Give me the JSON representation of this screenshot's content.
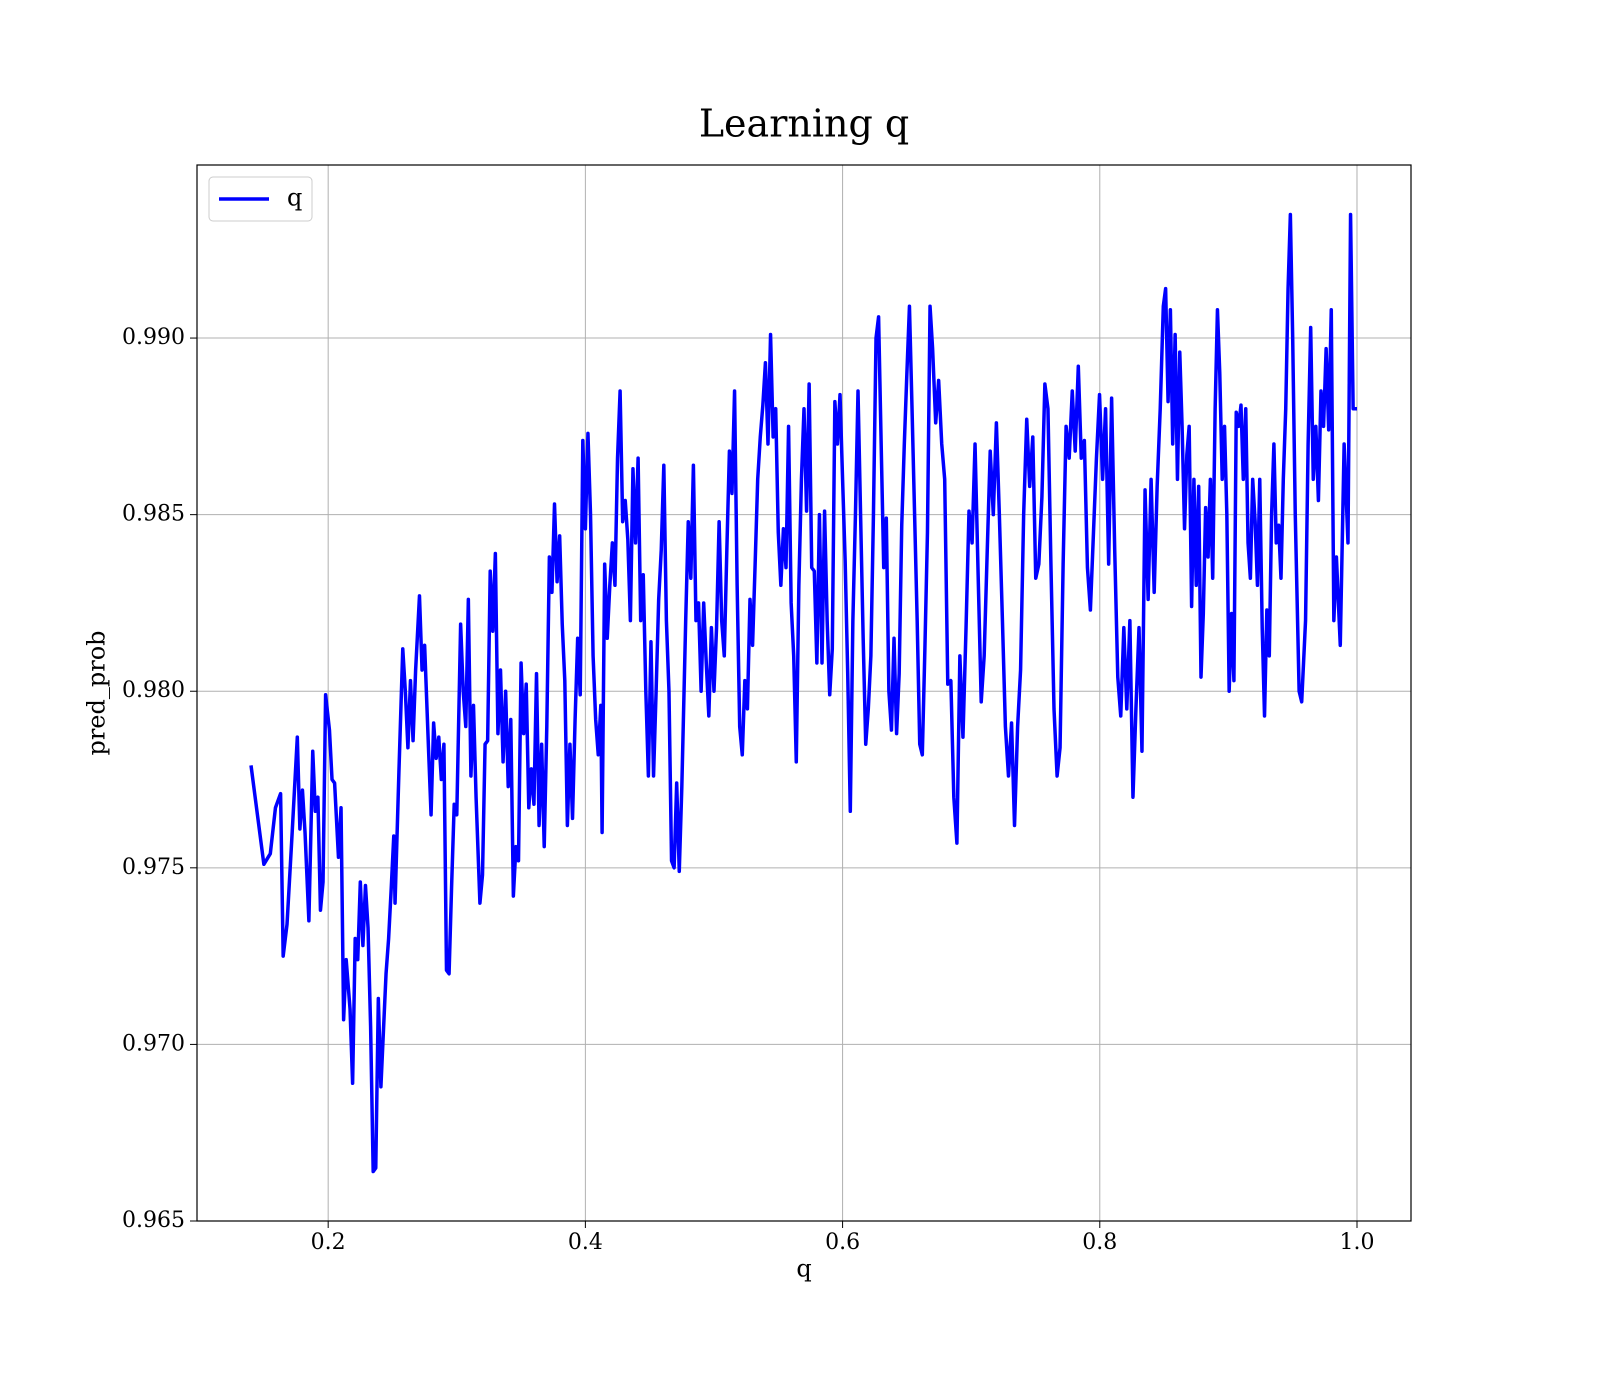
{
  "chart_data": {
    "type": "line",
    "title": "Learning q",
    "xlabel": "q",
    "ylabel": "pred_prob",
    "x": [
      0.14,
      0.15,
      0.155,
      0.159,
      0.163,
      0.165,
      0.168,
      0.172,
      0.176,
      0.178,
      0.18,
      0.182,
      0.185,
      0.188,
      0.19,
      0.192,
      0.194,
      0.196,
      0.198,
      0.201,
      0.203,
      0.205,
      0.208,
      0.21,
      0.212,
      0.214,
      0.217,
      0.219,
      0.221,
      0.223,
      0.225,
      0.227,
      0.229,
      0.231,
      0.233,
      0.235,
      0.237,
      0.239,
      0.241,
      0.243,
      0.245,
      0.247,
      0.249,
      0.251,
      0.252,
      0.255,
      0.258,
      0.26,
      0.262,
      0.264,
      0.266,
      0.268,
      0.271,
      0.273,
      0.275,
      0.278,
      0.28,
      0.282,
      0.284,
      0.286,
      0.288,
      0.29,
      0.292,
      0.294,
      0.296,
      0.298,
      0.3,
      0.303,
      0.305,
      0.307,
      0.309,
      0.311,
      0.313,
      0.315,
      0.318,
      0.32,
      0.322,
      0.324,
      0.326,
      0.328,
      0.33,
      0.332,
      0.334,
      0.336,
      0.338,
      0.34,
      0.342,
      0.344,
      0.346,
      0.348,
      0.35,
      0.352,
      0.354,
      0.356,
      0.358,
      0.36,
      0.362,
      0.364,
      0.366,
      0.368,
      0.37,
      0.372,
      0.374,
      0.376,
      0.378,
      0.38,
      0.382,
      0.384,
      0.386,
      0.388,
      0.39,
      0.392,
      0.394,
      0.396,
      0.398,
      0.4,
      0.402,
      0.404,
      0.406,
      0.408,
      0.41,
      0.412,
      0.413,
      0.415,
      0.417,
      0.419,
      0.421,
      0.423,
      0.425,
      0.427,
      0.429,
      0.431,
      0.433,
      0.435,
      0.437,
      0.439,
      0.441,
      0.443,
      0.445,
      0.447,
      0.449,
      0.451,
      0.453,
      0.455,
      0.457,
      0.459,
      0.461,
      0.463,
      0.465,
      0.467,
      0.469,
      0.471,
      0.473,
      0.475,
      0.478,
      0.48,
      0.482,
      0.484,
      0.486,
      0.488,
      0.49,
      0.492,
      0.494,
      0.496,
      0.498,
      0.5,
      0.502,
      0.504,
      0.506,
      0.508,
      0.51,
      0.512,
      0.514,
      0.516,
      0.518,
      0.52,
      0.522,
      0.524,
      0.526,
      0.528,
      0.53,
      0.532,
      0.534,
      0.536,
      0.538,
      0.54,
      0.542,
      0.544,
      0.546,
      0.548,
      0.55,
      0.552,
      0.554,
      0.556,
      0.558,
      0.56,
      0.562,
      0.564,
      0.566,
      0.568,
      0.57,
      0.572,
      0.574,
      0.576,
      0.578,
      0.58,
      0.582,
      0.584,
      0.586,
      0.588,
      0.59,
      0.592,
      0.594,
      0.596,
      0.598,
      0.6,
      0.602,
      0.604,
      0.606,
      0.608,
      0.61,
      0.612,
      0.614,
      0.616,
      0.618,
      0.62,
      0.622,
      0.624,
      0.626,
      0.628,
      0.63,
      0.632,
      0.634,
      0.636,
      0.638,
      0.64,
      0.642,
      0.644,
      0.646,
      0.648,
      0.65,
      0.652,
      0.654,
      0.656,
      0.658,
      0.66,
      0.662,
      0.664,
      0.666,
      0.668,
      0.67,
      0.6724,
      0.6747,
      0.6771,
      0.6794,
      0.6818,
      0.6842,
      0.6865,
      0.6889,
      0.6912,
      0.6936,
      0.696,
      0.6983,
      0.7007,
      0.703,
      0.7054,
      0.7078,
      0.7101,
      0.7125,
      0.7148,
      0.7172,
      0.7196,
      0.7219,
      0.7243,
      0.7266,
      0.729,
      0.7314,
      0.7337,
      0.7361,
      0.7384,
      0.7408,
      0.7432,
      0.7455,
      0.7479,
      0.7502,
      0.7526,
      0.755,
      0.7573,
      0.7597,
      0.762,
      0.7644,
      0.7668,
      0.7691,
      0.7715,
      0.7738,
      0.7762,
      0.7786,
      0.7809,
      0.7833,
      0.7856,
      0.788,
      0.7904,
      0.7927,
      0.7951,
      0.7974,
      0.7998,
      0.8022,
      0.8045,
      0.8069,
      0.8092,
      0.8116,
      0.814,
      0.8163,
      0.8187,
      0.821,
      0.8234,
      0.8258,
      0.8281,
      0.8305,
      0.8328,
      0.8352,
      0.8376,
      0.8399,
      0.8423,
      0.8446,
      0.847,
      0.8494,
      0.8512,
      0.8531,
      0.8549,
      0.8567,
      0.8586,
      0.8604,
      0.8622,
      0.864,
      0.8659,
      0.8677,
      0.8695,
      0.8714,
      0.8732,
      0.875,
      0.8769,
      0.8787,
      0.8805,
      0.8823,
      0.8842,
      0.886,
      0.8878,
      0.8897,
      0.8915,
      0.8933,
      0.8952,
      0.897,
      0.8988,
      0.9006,
      0.9025,
      0.9043,
      0.9061,
      0.908,
      0.9098,
      0.9116,
      0.9135,
      0.9153,
      0.9171,
      0.9189,
      0.9208,
      0.9226,
      0.9244,
      0.9263,
      0.9281,
      0.9299,
      0.9318,
      0.9336,
      0.9354,
      0.9372,
      0.9391,
      0.9409,
      0.9427,
      0.9446,
      0.9464,
      0.9482,
      0.95,
      0.952,
      0.955,
      0.957,
      0.96,
      0.962,
      0.964,
      0.966,
      0.968,
      0.97,
      0.972,
      0.974,
      0.976,
      0.978,
      0.98,
      0.982,
      0.984,
      0.987,
      0.99,
      0.993,
      0.995,
      0.997,
      1.0
    ],
    "series": [
      {
        "name": "q",
        "color": "#0000ff",
        "values": [
          0.9779,
          0.9751,
          0.9754,
          0.9767,
          0.9771,
          0.9725,
          0.9734,
          0.976,
          0.9787,
          0.9761,
          0.9772,
          0.976,
          0.9735,
          0.9783,
          0.9766,
          0.977,
          0.9738,
          0.9746,
          0.9799,
          0.9789,
          0.9775,
          0.9774,
          0.9753,
          0.9767,
          0.9707,
          0.9724,
          0.971,
          0.9689,
          0.973,
          0.9724,
          0.9746,
          0.9728,
          0.9745,
          0.9733,
          0.9705,
          0.9664,
          0.9665,
          0.9713,
          0.9688,
          0.9704,
          0.972,
          0.973,
          0.9744,
          0.9759,
          0.974,
          0.9777,
          0.9812,
          0.98,
          0.9784,
          0.9803,
          0.9786,
          0.9806,
          0.9827,
          0.9806,
          0.9813,
          0.9784,
          0.9765,
          0.9791,
          0.9781,
          0.9787,
          0.9775,
          0.9785,
          0.9721,
          0.972,
          0.9745,
          0.9768,
          0.9765,
          0.9819,
          0.98,
          0.979,
          0.9826,
          0.9776,
          0.9796,
          0.977,
          0.974,
          0.9748,
          0.9785,
          0.9786,
          0.9834,
          0.9817,
          0.9839,
          0.9788,
          0.9806,
          0.978,
          0.98,
          0.9773,
          0.9792,
          0.9742,
          0.9756,
          0.9752,
          0.9808,
          0.9788,
          0.9802,
          0.9767,
          0.9778,
          0.9768,
          0.9805,
          0.9762,
          0.9785,
          0.9756,
          0.979,
          0.9838,
          0.9828,
          0.9853,
          0.9831,
          0.9844,
          0.9819,
          0.9803,
          0.9762,
          0.9785,
          0.9764,
          0.9792,
          0.9815,
          0.9799,
          0.9871,
          0.9846,
          0.9873,
          0.985,
          0.981,
          0.9792,
          0.9782,
          0.9796,
          0.976,
          0.9836,
          0.9815,
          0.983,
          0.9842,
          0.983,
          0.9866,
          0.9885,
          0.9848,
          0.9854,
          0.9843,
          0.982,
          0.9863,
          0.9842,
          0.9866,
          0.982,
          0.9833,
          0.98,
          0.9776,
          0.9814,
          0.9776,
          0.98,
          0.9826,
          0.984,
          0.9864,
          0.982,
          0.98,
          0.9752,
          0.975,
          0.9774,
          0.9749,
          0.9773,
          0.982,
          0.9848,
          0.9832,
          0.9864,
          0.982,
          0.9825,
          0.98,
          0.9825,
          0.9808,
          0.9793,
          0.9818,
          0.98,
          0.9818,
          0.9848,
          0.982,
          0.981,
          0.984,
          0.9868,
          0.9856,
          0.9885,
          0.983,
          0.979,
          0.9782,
          0.9803,
          0.9795,
          0.9826,
          0.9813,
          0.9836,
          0.986,
          0.9872,
          0.9881,
          0.9893,
          0.987,
          0.9901,
          0.9872,
          0.988,
          0.9845,
          0.983,
          0.9846,
          0.9835,
          0.9875,
          0.9825,
          0.981,
          0.978,
          0.983,
          0.986,
          0.988,
          0.9851,
          0.9887,
          0.9835,
          0.9834,
          0.9808,
          0.985,
          0.9808,
          0.9851,
          0.982,
          0.9799,
          0.9812,
          0.9882,
          0.987,
          0.9884,
          0.986,
          0.9837,
          0.9805,
          0.9766,
          0.982,
          0.985,
          0.9885,
          0.985,
          0.9815,
          0.9785,
          0.9795,
          0.981,
          0.985,
          0.99,
          0.9906,
          0.987,
          0.9835,
          0.9849,
          0.98,
          0.9789,
          0.9815,
          0.9788,
          0.9805,
          0.9847,
          0.987,
          0.989,
          0.9909,
          0.988,
          0.985,
          0.982,
          0.9785,
          0.9782,
          0.9812,
          0.9845,
          0.9909,
          0.9897,
          0.9876,
          0.9888,
          0.987,
          0.986,
          0.9802,
          0.9803,
          0.977,
          0.9757,
          0.981,
          0.9787,
          0.9818,
          0.9851,
          0.9842,
          0.987,
          0.9833,
          0.9797,
          0.981,
          0.984,
          0.9868,
          0.985,
          0.9876,
          0.985,
          0.982,
          0.979,
          0.9776,
          0.9791,
          0.9762,
          0.979,
          0.9806,
          0.985,
          0.9877,
          0.9858,
          0.9872,
          0.9832,
          0.9836,
          0.9855,
          0.9887,
          0.988,
          0.9836,
          0.9795,
          0.9776,
          0.9784,
          0.9836,
          0.9875,
          0.9866,
          0.9885,
          0.9868,
          0.9892,
          0.9866,
          0.9871,
          0.9835,
          0.9823,
          0.9845,
          0.9866,
          0.9884,
          0.986,
          0.988,
          0.9836,
          0.9883,
          0.984,
          0.9804,
          0.9793,
          0.9818,
          0.9795,
          0.982,
          0.977,
          0.9795,
          0.9818,
          0.9783,
          0.9857,
          0.9826,
          0.986,
          0.9828,
          0.9858,
          0.988,
          0.9909,
          0.9914,
          0.9882,
          0.9908,
          0.987,
          0.9901,
          0.986,
          0.9896,
          0.9875,
          0.9846,
          0.9867,
          0.9875,
          0.9824,
          0.986,
          0.983,
          0.9858,
          0.9804,
          0.9822,
          0.9852,
          0.9838,
          0.986,
          0.9832,
          0.988,
          0.9908,
          0.989,
          0.986,
          0.9875,
          0.985,
          0.98,
          0.9822,
          0.9803,
          0.9879,
          0.9875,
          0.9881,
          0.986,
          0.988,
          0.9842,
          0.9832,
          0.986,
          0.9848,
          0.983,
          0.986,
          0.9818,
          0.9793,
          0.9823,
          0.981,
          0.985,
          0.987,
          0.9842,
          0.9847,
          0.9832,
          0.986,
          0.988,
          0.9914,
          0.9935,
          0.99,
          0.985,
          0.98,
          0.9797,
          0.982,
          0.987,
          0.9903,
          0.986,
          0.9875,
          0.9854,
          0.9885,
          0.9875,
          0.9897,
          0.9874,
          0.9908,
          0.982,
          0.9838,
          0.9813,
          0.987,
          0.9842,
          0.9935,
          0.988,
          0.988
        ]
      }
    ],
    "xlim": [
      0.098,
      1.042
    ],
    "ylim": [
      0.965,
      0.9949
    ],
    "xticks": [
      0.2,
      0.4,
      0.6,
      0.8,
      {
        "value": 1.0,
        "label": "1.0"
      }
    ],
    "yticks": [
      0.965,
      {
        "value": 0.97,
        "label": "0.970"
      },
      0.975,
      {
        "value": 0.98,
        "label": "0.980"
      },
      0.985,
      {
        "value": 0.99,
        "label": "0.990"
      }
    ],
    "grid": true,
    "legend": "upper left"
  }
}
